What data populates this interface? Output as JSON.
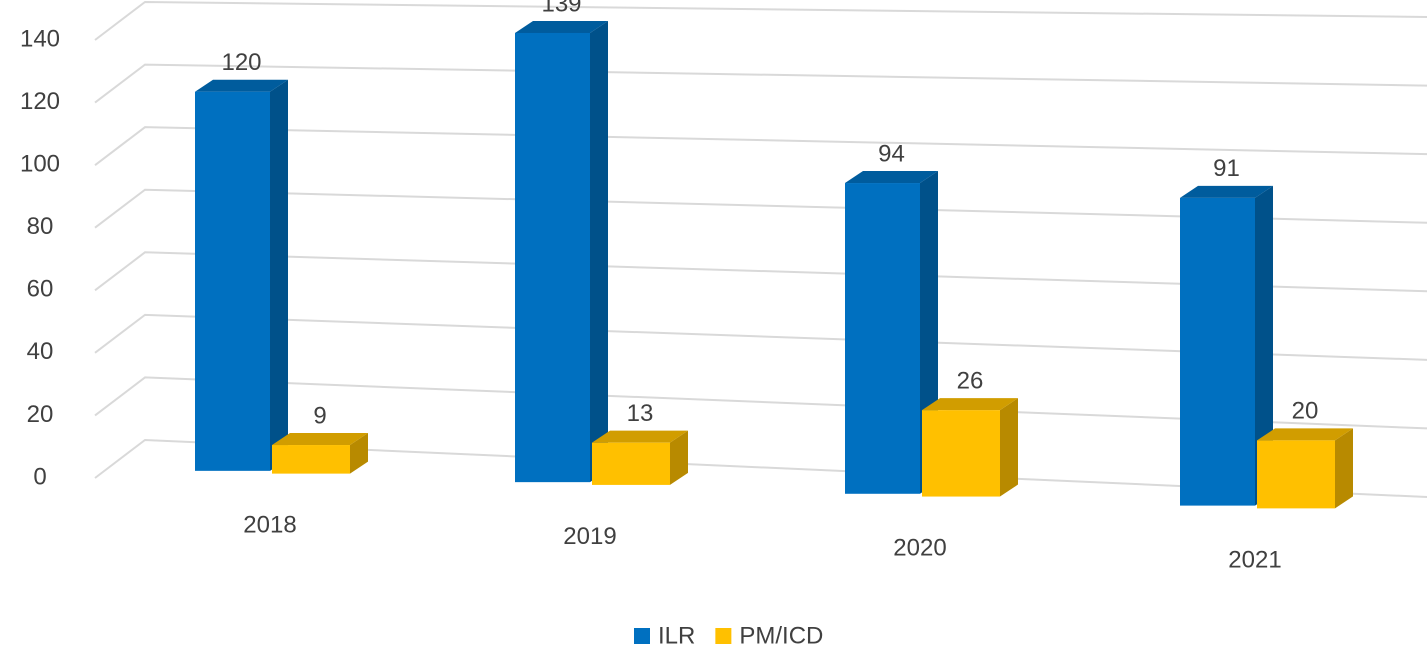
{
  "chart_data": {
    "type": "bar3d",
    "categories": [
      "2018",
      "2019",
      "2020",
      "2021"
    ],
    "series": [
      {
        "name": "ILR",
        "color": "#0070c0",
        "values": [
          120,
          139,
          94,
          91
        ]
      },
      {
        "name": "PM/ICD",
        "color": "#ffc000",
        "values": [
          9,
          13,
          26,
          20
        ]
      }
    ],
    "ylim": [
      0,
      140
    ],
    "yticks": [
      0,
      20,
      40,
      60,
      80,
      100,
      120,
      140
    ],
    "grid": true,
    "legend": "bottom"
  }
}
